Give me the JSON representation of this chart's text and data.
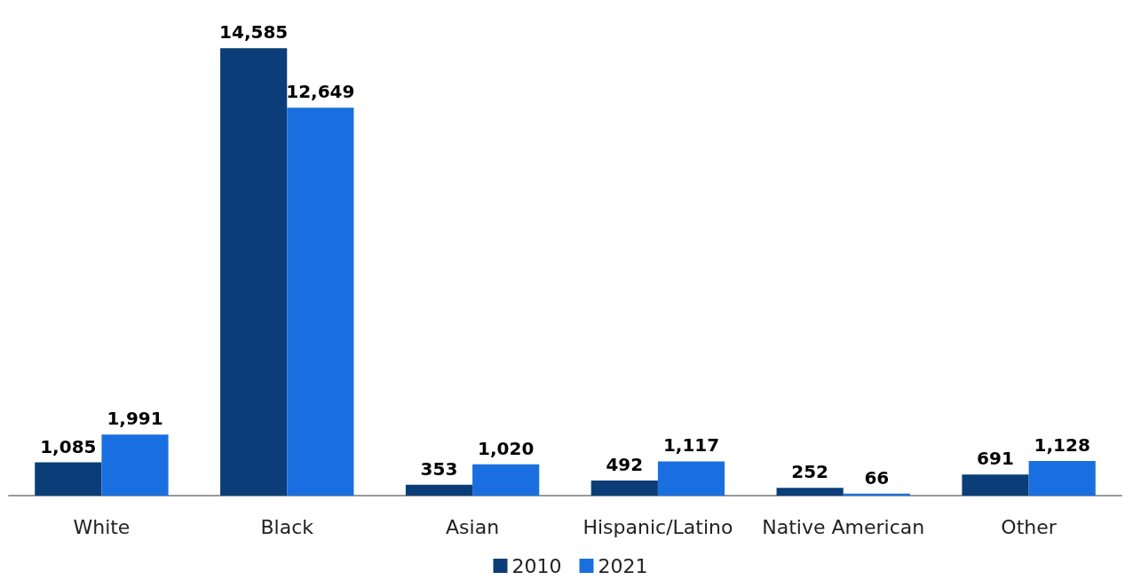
{
  "chart_data": {
    "type": "bar",
    "categories": [
      "White",
      "Black",
      "Asian",
      "Hispanic/Latino",
      "Native American",
      "Other"
    ],
    "series": [
      {
        "name": "2010",
        "color": "#0b3d78",
        "values": [
          1085,
          14585,
          353,
          492,
          252,
          691
        ],
        "value_labels": [
          "1,085",
          "14,585",
          "353",
          "492",
          "252",
          "691"
        ]
      },
      {
        "name": "2021",
        "color": "#1a6fe0",
        "values": [
          1991,
          12649,
          1020,
          1117,
          66,
          1128
        ],
        "value_labels": [
          "1,991",
          "12,649",
          "1,020",
          "1,117",
          "66",
          "1,128"
        ]
      }
    ],
    "legend": "bottom"
  }
}
